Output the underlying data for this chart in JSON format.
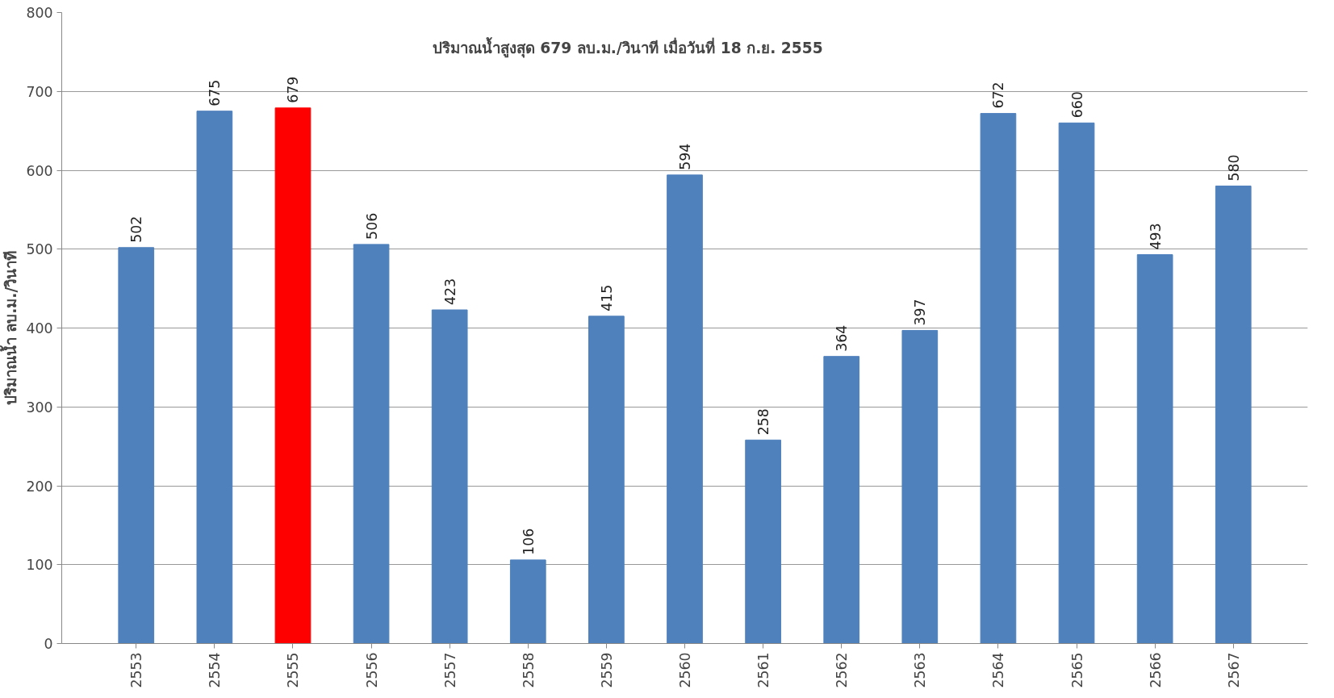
{
  "chart_data": {
    "type": "bar",
    "ylabel": "ปริมาณน้ำ ลบ.ม./วินาที",
    "annotations": [
      "ปริมาณน้ำสูงสุด 679 ลบ.ม./วินาที เมื่อวันที่ 18 ก.ย. 2555"
    ],
    "categories": [
      "2553",
      "2554",
      "2555",
      "2556",
      "2557",
      "2558",
      "2559",
      "2560",
      "2561",
      "2562",
      "2563",
      "2564",
      "2565",
      "2566",
      "2567"
    ],
    "values": [
      502,
      675,
      679,
      506,
      423,
      106,
      415,
      594,
      258,
      364,
      397,
      672,
      660,
      493,
      580
    ],
    "colors": [
      "#4f81bd",
      "#4f81bd",
      "#ff0000",
      "#4f81bd",
      "#4f81bd",
      "#4f81bd",
      "#4f81bd",
      "#4f81bd",
      "#4f81bd",
      "#4f81bd",
      "#4f81bd",
      "#4f81bd",
      "#4f81bd",
      "#4f81bd",
      "#4f81bd"
    ],
    "ylim": [
      0,
      800
    ],
    "yticks": [
      0,
      100,
      200,
      300,
      400,
      500,
      600,
      700,
      800
    ],
    "grid": "y",
    "data_labels": true
  }
}
